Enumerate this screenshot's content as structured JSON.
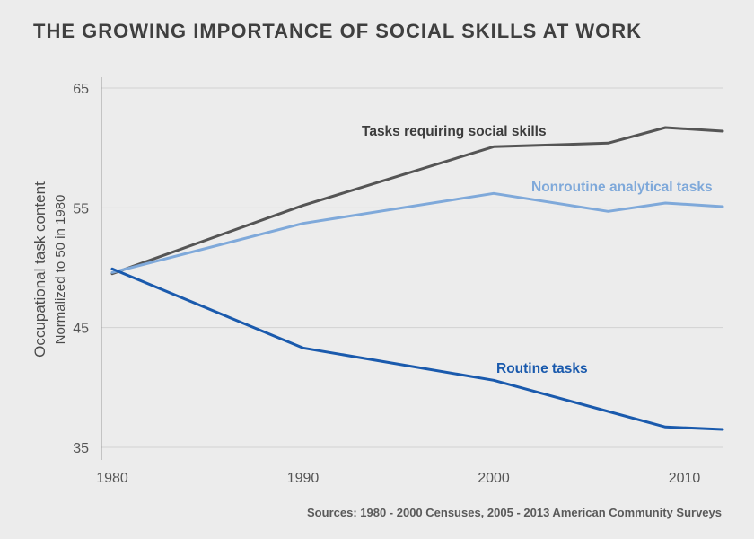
{
  "header": {
    "title": "THE GROWING IMPORTANCE OF SOCIAL SKILLS AT WORK"
  },
  "footer": {
    "source": "Sources: 1980 - 2000 Censuses, 2005 - 2013 American Community Surveys"
  },
  "chart_data": {
    "type": "line",
    "title": "THE GROWING IMPORTANCE OF SOCIAL SKILLS AT WORK",
    "ylabel": "Occupational task content",
    "ylabel_sub": "Normalized to 50 in 1980",
    "xlabel": "",
    "xlim": [
      1980,
      2012
    ],
    "ylim": [
      35,
      65
    ],
    "x_ticks": [
      1980,
      1990,
      2000,
      2010
    ],
    "y_ticks": [
      35,
      45,
      55,
      65
    ],
    "grid": true,
    "series": [
      {
        "name": "Tasks requiring social skills",
        "color": "#555555",
        "x": [
          1980,
          1990,
          2000,
          2006,
          2009,
          2012
        ],
        "y": [
          49.5,
          55.2,
          60.1,
          60.4,
          61.7,
          61.4
        ]
      },
      {
        "name": "Nonroutine analytical tasks",
        "color": "#7fa9da",
        "x": [
          1980,
          1990,
          2000,
          2006,
          2009,
          2012
        ],
        "y": [
          49.6,
          53.7,
          56.2,
          54.7,
          55.4,
          55.1
        ]
      },
      {
        "name": "Routine tasks",
        "color": "#1a5aad",
        "x": [
          1980,
          1990,
          2000,
          2006,
          2009,
          2012
        ],
        "y": [
          49.9,
          43.3,
          40.6,
          38.0,
          36.7,
          36.5
        ]
      }
    ]
  }
}
